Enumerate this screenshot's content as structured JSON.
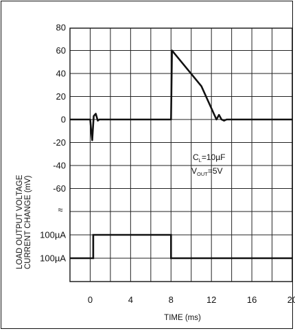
{
  "chart_data": {
    "type": "line",
    "title": "",
    "xlabel": "TIME (ms)",
    "ylabel_lines": [
      "LOAD OUTPUT VOLTAGE",
      "CURRENT CHANGE (mV)"
    ],
    "x_ticks": [
      "0",
      "4",
      "8",
      "12",
      "16",
      "20"
    ],
    "xlim": [
      -2,
      20
    ],
    "y_ticks_voltage": [
      "80",
      "60",
      "40",
      "20",
      "0",
      "-20",
      "-40",
      "-60"
    ],
    "ylim_voltage": [
      -80,
      80
    ],
    "y_break_symbol": "≈",
    "y_ticks_current": [
      "100µA",
      "100µA"
    ],
    "annotation": {
      "line1": {
        "main": "C",
        "sub": "L",
        "rest": "=10µF"
      },
      "line2": {
        "main": "V",
        "sub": "OUT",
        "rest": "=5V"
      }
    },
    "grid": true,
    "series": [
      {
        "unit": "mV",
        "x": [
          -2,
          0.0,
          0.1,
          0.2,
          0.35,
          0.55,
          0.75,
          0.9,
          8.0,
          8.1,
          11.0,
          12.5,
          12.75,
          13.0,
          13.25,
          13.5,
          14.0,
          20
        ],
        "y": [
          0,
          0,
          -10,
          -18,
          3,
          5,
          -1,
          0,
          0,
          60,
          29,
          0,
          4,
          0,
          -1,
          0,
          0,
          0
        ]
      },
      {
        "unit": "µA",
        "levels": [
          "low",
          "high"
        ],
        "x": [
          -2,
          0.3,
          0.3,
          8.0,
          8.0,
          20
        ],
        "level": [
          "low",
          "low",
          "high",
          "high",
          "low",
          "low"
        ]
      }
    ]
  }
}
